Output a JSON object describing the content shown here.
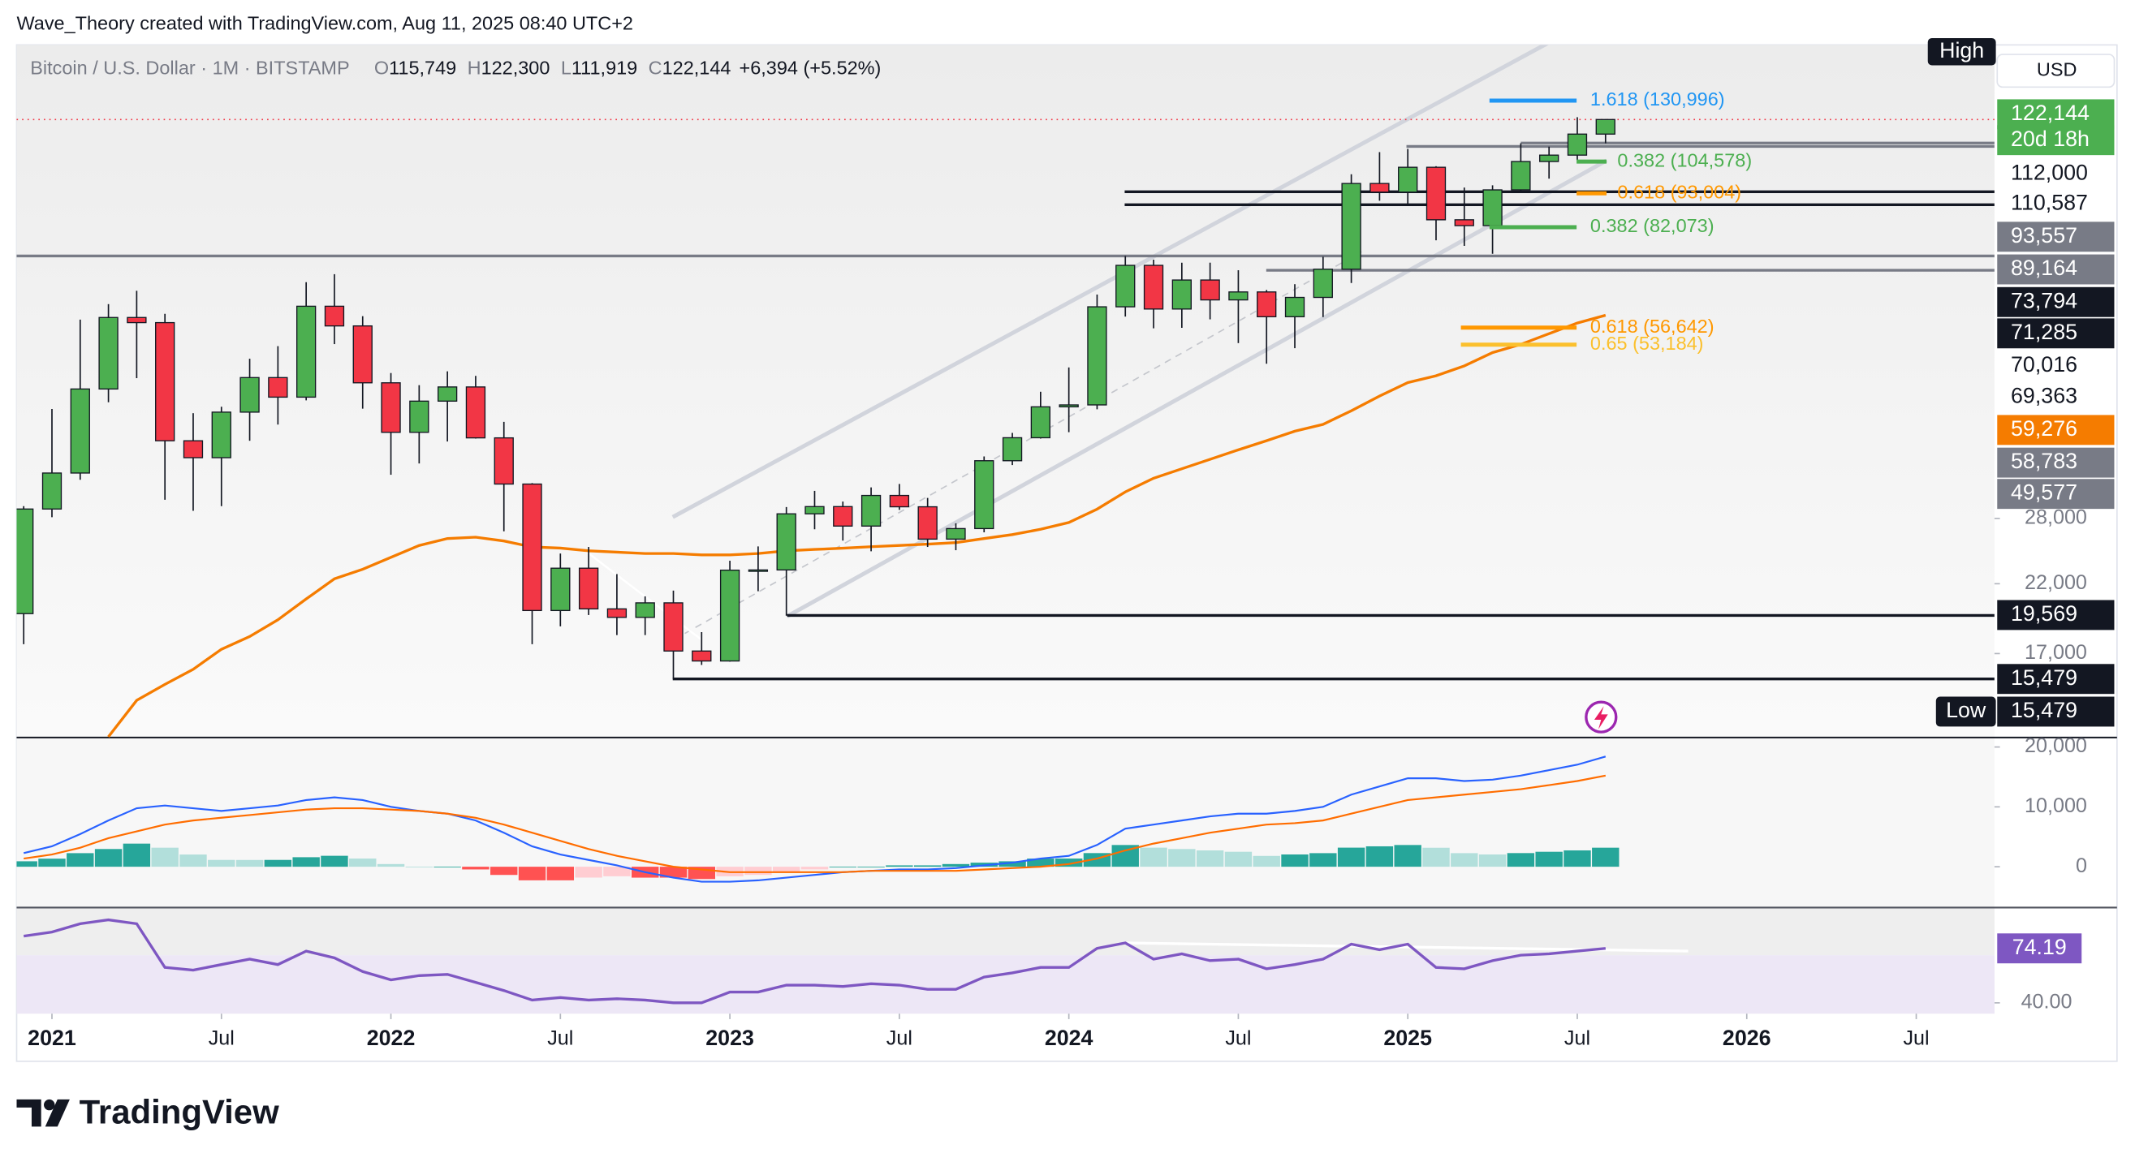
{
  "header": {
    "author_line": "Wave_Theory created with TradingView.com, Aug 11, 2025 08:40 UTC+2",
    "brand": "TradingView"
  },
  "chart_data": [
    {
      "type": "candlestick",
      "title": "Bitcoin / U.S. Dollar · 1M · BITSTAMP",
      "legend_ohlc": [
        {
          "key": "O",
          "label": "115,749"
        },
        {
          "key": "H",
          "label": "122,300"
        },
        {
          "key": "L",
          "label": "111,919"
        },
        {
          "key": "C",
          "label": "122,144"
        }
      ],
      "change": "+6,394 (+5.52%)",
      "currency": "USD",
      "high_label": "High",
      "low_label": "Low",
      "up_color": "#4caf50",
      "down_color": "#f23645",
      "log_scale": true,
      "grid": false,
      "open": [
        19700,
        28990,
        33110,
        45160,
        58800,
        57700,
        37300,
        35040,
        41460,
        47100,
        43820,
        61300,
        57000,
        46200,
        38480,
        43180,
        45500,
        37700,
        31790,
        19930,
        23300,
        20050,
        19430,
        20500,
        17160,
        16540,
        23130,
        23150,
        28480,
        29250,
        27220,
        30480,
        29230,
        25940,
        26970,
        34650,
        37720,
        42280,
        42580,
        61170,
        71290,
        60670,
        67530,
        62750,
        64620,
        58970,
        63330,
        70290,
        96450,
        93430,
        102400,
        84350,
        82550,
        94200,
        104600,
        107100,
        115749
      ],
      "high": [
        29300,
        41950,
        58350,
        61780,
        64900,
        59600,
        41300,
        42300,
        50500,
        52900,
        67000,
        69000,
        59100,
        47900,
        45800,
        48200,
        47400,
        40000,
        31900,
        24600,
        25200,
        22800,
        21000,
        21450,
        18400,
        23950,
        25250,
        29200,
        31000,
        29800,
        31400,
        31800,
        30200,
        27500,
        35200,
        38400,
        44700,
        48900,
        64000,
        73794,
        72800,
        72000,
        72000,
        70016,
        65100,
        66500,
        73600,
        99800,
        108300,
        109600,
        102800,
        95000,
        95800,
        111900,
        110500,
        123200,
        122300
      ],
      "low": [
        17600,
        28130,
        32300,
        43000,
        47000,
        30000,
        28800,
        29300,
        37300,
        39600,
        43300,
        53300,
        42000,
        32900,
        34300,
        37200,
        37600,
        26700,
        17600,
        18800,
        19600,
        18200,
        18200,
        15479,
        16300,
        16500,
        21400,
        19550,
        26900,
        25800,
        24800,
        28900,
        25200,
        24900,
        26600,
        34100,
        37600,
        38500,
        41900,
        59000,
        56500,
        56600,
        58400,
        53500,
        49577,
        52500,
        58900,
        66800,
        90500,
        89200,
        78200,
        76600,
        74400,
        93400,
        98200,
        105100,
        111919
      ],
      "close": [
        28990,
        33110,
        45160,
        58800,
        57700,
        37300,
        35040,
        41460,
        47100,
        43820,
        61300,
        57000,
        46200,
        38480,
        43180,
        45500,
        37700,
        31790,
        19930,
        23300,
        20050,
        19430,
        20500,
        17160,
        16540,
        23130,
        23150,
        28480,
        29250,
        27220,
        30480,
        29230,
        25940,
        26970,
        34650,
        37720,
        42280,
        42580,
        61170,
        71290,
        60670,
        67530,
        62750,
        64620,
        58970,
        63330,
        70290,
        96450,
        93430,
        102400,
        84350,
        82550,
        94200,
        104600,
        107100,
        115749,
        122144
      ],
      "ema": {
        "color": "#f57c00",
        "values": [
          null,
          null,
          null,
          12500,
          14300,
          15170,
          16040,
          17270,
          18100,
          19260,
          20800,
          22400,
          23200,
          24250,
          25340,
          25990,
          26120,
          25760,
          25200,
          25100,
          24850,
          24720,
          24600,
          24600,
          24480,
          24480,
          24600,
          24850,
          24970,
          25090,
          25220,
          25340,
          25470,
          25600,
          25990,
          26380,
          26900,
          27580,
          28980,
          30880,
          32470,
          33630,
          34830,
          36080,
          37300,
          38650,
          39630,
          41660,
          43990,
          46230,
          47400,
          49170,
          51670,
          53240,
          55400,
          57610,
          59276
        ]
      },
      "xlim": [
        -0.25,
        69.77
      ],
      "xticks": [
        {
          "value": 1,
          "label": "2021"
        },
        {
          "value": 7,
          "label": "Jul"
        },
        {
          "value": 13,
          "label": "2022"
        },
        {
          "value": 19,
          "label": "Jul"
        },
        {
          "value": 25,
          "label": "2023"
        },
        {
          "value": 31,
          "label": "Jul"
        },
        {
          "value": 37,
          "label": "2024"
        },
        {
          "value": 43,
          "label": "Jul"
        },
        {
          "value": 49,
          "label": "2025"
        },
        {
          "value": 55,
          "label": "Jul"
        },
        {
          "value": 61,
          "label": "2026"
        },
        {
          "value": 67,
          "label": "Jul"
        }
      ],
      "ylim": [
        12470,
        160900
      ],
      "yticks": [
        {
          "value": 17000,
          "label": "17,000"
        },
        {
          "value": 22000,
          "label": "22,000"
        },
        {
          "value": 28000,
          "label": "28,000"
        }
      ],
      "fib_levels": [
        {
          "label": "1.618 (130,996)",
          "value": 130996,
          "color": "#2196f3"
        },
        {
          "label": "0.382 (104,578)",
          "value": 104578,
          "color": "#4caf50"
        },
        {
          "label": "0.618 (93,004)",
          "value": 93004,
          "color": "#ff9800"
        },
        {
          "label": "0.382 (82,073)",
          "value": 82073,
          "color": "#4caf50"
        },
        {
          "label": "0.618 (56,642)",
          "value": 56642,
          "color": "#ff9800"
        },
        {
          "label": "0.65 (53,184)",
          "value": 53184,
          "color": "#fbc02d"
        }
      ],
      "price_labels": [
        {
          "value": 122144,
          "label": "122,144",
          "bg": "#4caf50",
          "fg": "#ffffff"
        },
        {
          "label": "20d 18h",
          "bg": "#4caf50",
          "fg": "#ffffff"
        },
        {
          "value": 112000,
          "label": "112,000",
          "bg": "#ffffff",
          "fg": "#131722",
          "line": "#787b86"
        },
        {
          "value": 110587,
          "label": "110,587",
          "bg": "#ffffff",
          "fg": "#131722",
          "line": "#787b86"
        },
        {
          "value": 93557,
          "label": "93,557",
          "bg": "#787b86",
          "fg": "#ffffff",
          "line": "#131722"
        },
        {
          "value": 89164,
          "label": "89,164",
          "bg": "#787b86",
          "fg": "#ffffff",
          "line": "#131722"
        },
        {
          "value": 73794,
          "label": "73,794",
          "bg": "#131722",
          "fg": "#ffffff",
          "line": "#787b86"
        },
        {
          "value": 71285,
          "label": "71,285",
          "bg": "#131722",
          "fg": "#ffffff"
        },
        {
          "value": 70016,
          "label": "70,016",
          "bg": "#ffffff",
          "fg": "#131722",
          "line": "#787b86"
        },
        {
          "value": 69363,
          "label": "69,363",
          "bg": "#ffffff",
          "fg": "#131722"
        },
        {
          "value": 59276,
          "label": "59,276",
          "bg": "#f57c00",
          "fg": "#ffffff"
        },
        {
          "value": 58783,
          "label": "58,783",
          "bg": "#787b86",
          "fg": "#ffffff"
        },
        {
          "value": 49577,
          "label": "49,577",
          "bg": "#787b86",
          "fg": "#ffffff"
        },
        {
          "value": 19569,
          "label": "19,569",
          "bg": "#131722",
          "fg": "#ffffff",
          "line": "#131722"
        },
        {
          "value": 15479,
          "label": "15,479",
          "bg": "#131722",
          "fg": "#ffffff",
          "line": "#131722"
        },
        {
          "value": 15479,
          "label": "15,479",
          "bg": "#131722",
          "fg": "#ffffff"
        }
      ]
    },
    {
      "type": "macd",
      "ylim": [
        -6818,
        21590
      ],
      "yticks": [
        0,
        {
          "value": 10000,
          "label": "10,000"
        },
        {
          "value": 20000,
          "label": "20,000"
        }
      ],
      "macd": {
        "color": "#2962ff",
        "values": [
          2270,
          3400,
          5450,
          7730,
          9770,
          10230,
          9770,
          9320,
          9770,
          10230,
          11140,
          11600,
          11140,
          10000,
          9320,
          8860,
          7730,
          5680,
          3410,
          2050,
          1140,
          230,
          -910,
          -1820,
          -2500,
          -2500,
          -2270,
          -1820,
          -1360,
          -910,
          -680,
          -450,
          -450,
          -230,
          230,
          680,
          1360,
          1820,
          3640,
          6360,
          7050,
          7730,
          8410,
          8860,
          8860,
          9320,
          10000,
          12050,
          13410,
          14770,
          14770,
          14320,
          14550,
          15230,
          16140,
          17050,
          18410
        ]
      },
      "signal": {
        "color": "#ff6d00",
        "values": [
          1360,
          2050,
          3180,
          4770,
          5910,
          7050,
          7730,
          8180,
          8640,
          9090,
          9550,
          9770,
          9770,
          9550,
          9320,
          8860,
          8180,
          7050,
          5680,
          4320,
          2950,
          1820,
          910,
          0,
          -450,
          -910,
          -910,
          -910,
          -910,
          -910,
          -680,
          -680,
          -680,
          -680,
          -450,
          -230,
          0,
          450,
          1360,
          2730,
          3860,
          4770,
          5680,
          6360,
          7050,
          7270,
          7730,
          8860,
          10000,
          11140,
          11600,
          12050,
          12500,
          12950,
          13640,
          14320,
          15230
        ]
      },
      "histogram": {
        "colors": [
          "#26a69a",
          "#b2dfdb",
          "#ff5252",
          "#ffcdd2"
        ],
        "values": [
          910,
          1350,
          2270,
          2960,
          3860,
          3180,
          2040,
          1140,
          1130,
          1140,
          1590,
          1830,
          1370,
          450,
          0,
          0,
          -450,
          -1370,
          -2270,
          -2270,
          -1810,
          -1590,
          -1820,
          -1820,
          -2050,
          -1590,
          -1360,
          -910,
          -450,
          0,
          0,
          230,
          230,
          450,
          680,
          910,
          1360,
          1370,
          2280,
          3630,
          3190,
          2960,
          2730,
          2500,
          1810,
          2050,
          2270,
          3190,
          3410,
          3630,
          3170,
          2270,
          2050,
          2280,
          2500,
          2730,
          3180
        ]
      }
    },
    {
      "type": "rsi",
      "ylim": [
        33.2,
        99.8
      ],
      "yticks": [
        {
          "value": 40,
          "label": "40.00"
        }
      ],
      "color": "#7e57c2",
      "values": [
        81.9,
        84.4,
        89.6,
        92.1,
        89.6,
        62.2,
        60.5,
        64,
        67.4,
        64,
        72.5,
        68.2,
        59.7,
        54.5,
        57.1,
        57.9,
        52.8,
        47.7,
        41.7,
        43.4,
        41.7,
        42.6,
        41.7,
        40,
        40,
        46.8,
        46.8,
        51.1,
        51.1,
        50.3,
        52,
        51.1,
        48.5,
        48.5,
        56.2,
        58.8,
        62.2,
        62.2,
        74.2,
        77.6,
        67.4,
        70.8,
        66.5,
        67.4,
        61.4,
        64,
        67.4,
        76.8,
        73.3,
        76.8,
        62.2,
        61.4,
        66.5,
        69.9,
        70.8,
        72.5,
        74.19
      ]
    }
  ]
}
